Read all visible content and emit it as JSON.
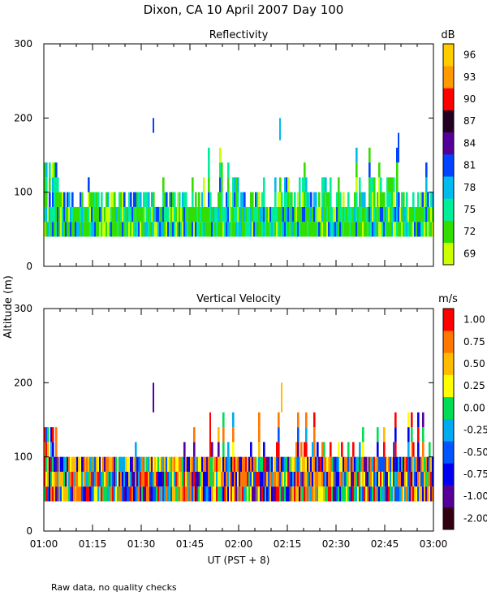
{
  "title": "Dixon, CA 10 April 2007  Day 100",
  "ylabel": "Altitude (m)",
  "xlabel": "UT  (PST + 8)",
  "footnote": "Raw data, no quality checks",
  "chart_data": [
    {
      "type": "heatmap",
      "title": "Reflectivity",
      "colorbar_label": "dB",
      "x_ticks": [
        "01:00",
        "01:15",
        "01:30",
        "01:45",
        "02:00",
        "02:15",
        "02:30",
        "02:45",
        "03:00"
      ],
      "x_range_minutes": [
        0,
        120
      ],
      "y_ticks": [
        0,
        100,
        200,
        300
      ],
      "ylim": [
        0,
        300
      ],
      "data_bottom_m": 40,
      "typical_top_m": 80,
      "colorbar": {
        "ticks": [
          "69",
          "72",
          "75",
          "78",
          "81",
          "84",
          "87",
          "90",
          "93",
          "96"
        ],
        "colors": [
          "#ccff00",
          "#33dd00",
          "#00ee99",
          "#00bbee",
          "#0044ff",
          "#550099",
          "#220022",
          "#ff0000",
          "#ff9900",
          "#ffcc00"
        ]
      },
      "palette": [
        "#ccff00",
        "#33dd00",
        "#33dd00",
        "#33dd00",
        "#00ee99",
        "#00ee99",
        "#00bbee",
        "#0044ff"
      ],
      "spikes": [
        {
          "t": 33.5,
          "bottom": 180,
          "top": 200,
          "color": "#0044ff"
        },
        {
          "t": 72.5,
          "bottom": 170,
          "top": 200,
          "color": "#00bbee"
        },
        {
          "t": 109,
          "bottom": 140,
          "top": 180,
          "color": "#0044ff"
        }
      ]
    },
    {
      "type": "heatmap",
      "title": "Vertical Velocity",
      "colorbar_label": "m/s",
      "x_ticks": [
        "01:00",
        "01:15",
        "01:30",
        "01:45",
        "02:00",
        "02:15",
        "02:30",
        "02:45",
        "03:00"
      ],
      "x_range_minutes": [
        0,
        120
      ],
      "y_ticks": [
        0,
        100,
        200,
        300
      ],
      "ylim": [
        0,
        300
      ],
      "data_bottom_m": 40,
      "typical_top_m": 100,
      "colorbar": {
        "ticks": [
          "-2.00",
          "-1.00",
          "-0.75",
          "-0.50",
          "-0.25",
          "0.00",
          "0.25",
          "0.50",
          "0.75",
          "1.00"
        ],
        "colors": [
          "#330011",
          "#550099",
          "#0000ee",
          "#0055ff",
          "#00aaee",
          "#00dd55",
          "#ffff00",
          "#ffbb00",
          "#ff7700",
          "#ff0000"
        ]
      },
      "palette": [
        "#ff7700",
        "#ff7700",
        "#ffbb00",
        "#ffff00",
        "#00dd55",
        "#00aaee",
        "#0055ff",
        "#0000ee",
        "#550099",
        "#ff0000"
      ],
      "spikes": [
        {
          "t": 33.5,
          "bottom": 160,
          "top": 200,
          "color": "#550099"
        },
        {
          "t": 73,
          "bottom": 160,
          "top": 200,
          "color": "#ffbb00"
        },
        {
          "t": 51,
          "bottom": 100,
          "top": 160,
          "color": "#ff0000"
        }
      ]
    }
  ]
}
